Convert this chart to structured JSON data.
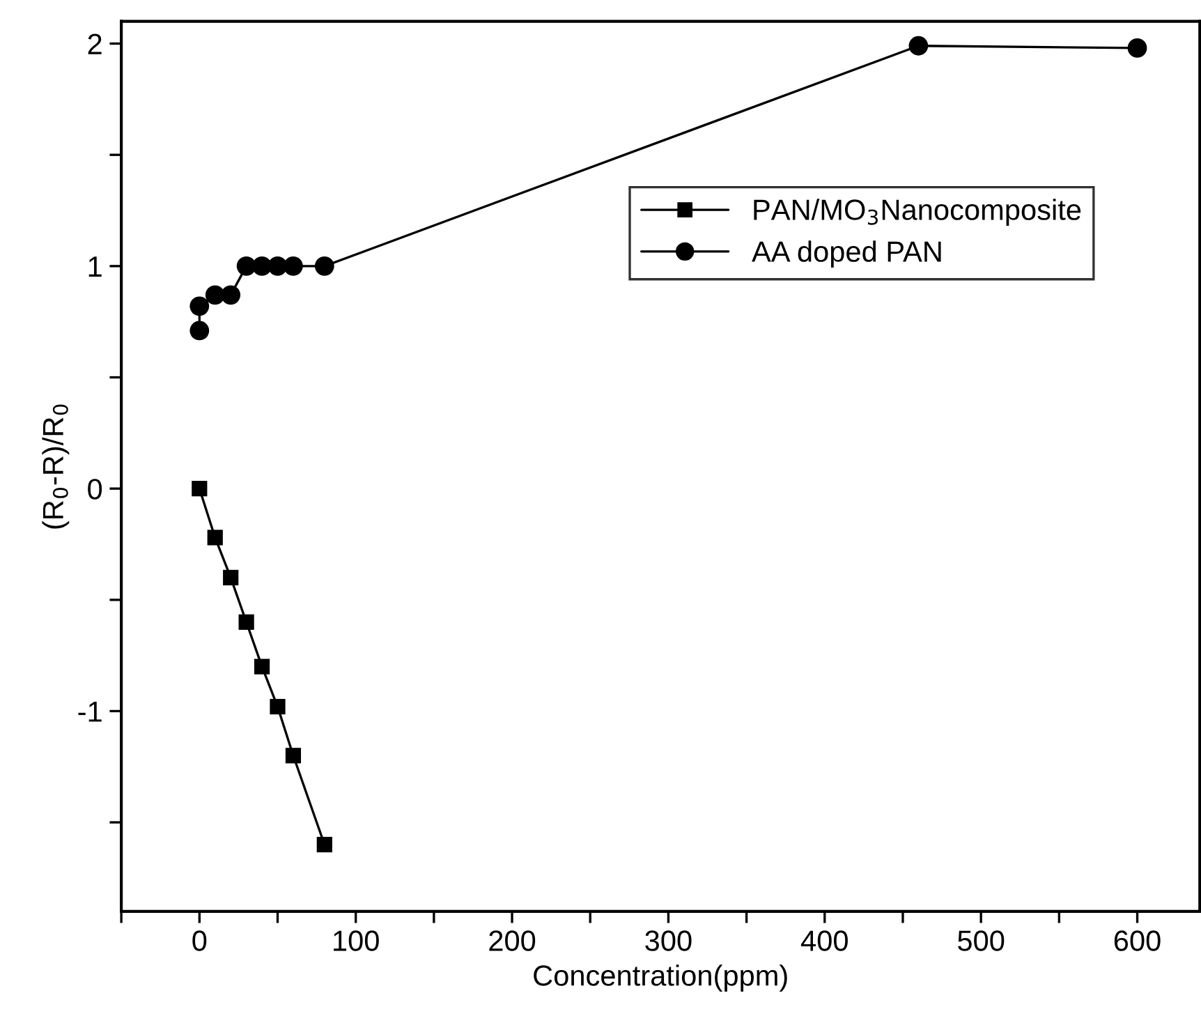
{
  "chart_data": {
    "type": "line",
    "xlabel": "Concentration(ppm)",
    "ylabel": "(R$_{0}$-R)/R$_{0}$",
    "legend": "top right",
    "line_style": "solid",
    "grid": false,
    "xlim": [
      -50,
      640
    ],
    "ylim": [
      -1.9,
      2.1
    ],
    "xticks": [
      {
        "value": -50,
        "label": null
      },
      0,
      {
        "value": 50,
        "label": null
      },
      100,
      {
        "value": 150,
        "label": null
      },
      200,
      {
        "value": 250,
        "label": null
      },
      300,
      {
        "value": 350,
        "label": null
      },
      400,
      {
        "value": 450,
        "label": null
      },
      500,
      {
        "value": 550,
        "label": null
      },
      600
    ],
    "yticks": [
      {
        "value": -1.5,
        "label": null
      },
      -1,
      {
        "value": -0.5,
        "label": null
      },
      0,
      {
        "value": 0.5,
        "label": null
      },
      1,
      {
        "value": 1.5,
        "label": null
      },
      2
    ],
    "series": [
      {
        "name": "PAN/MO$_{3}$Nanocomposite",
        "color": "#000000",
        "marker": "square",
        "x": [
          0,
          10,
          20,
          30,
          40,
          50,
          60,
          80
        ],
        "values": [
          0,
          -0.22,
          -0.4,
          -0.6,
          -0.8,
          -0.98,
          -1.2,
          -1.6
        ]
      },
      {
        "name": "AA doped PAN",
        "color": "#000000",
        "marker": "circle",
        "x": [
          0,
          0,
          10,
          20,
          30,
          40,
          50,
          60,
          80,
          460,
          600
        ],
        "values": [
          0.71,
          0.82,
          0.87,
          0.87,
          1.0,
          1.0,
          1.0,
          1.0,
          1.0,
          1.99,
          1.98
        ]
      }
    ]
  }
}
